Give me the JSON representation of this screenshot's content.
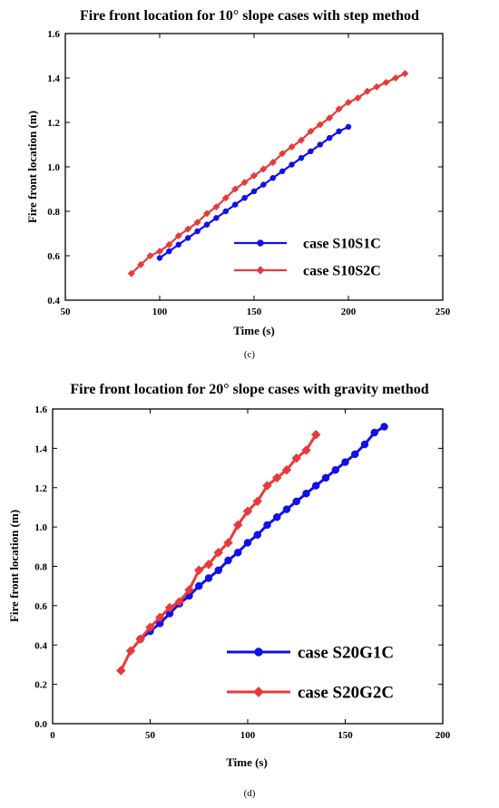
{
  "chart_data": [
    {
      "type": "line",
      "title": "Fire front location for 10° slope cases with step method",
      "xlabel": "Time (s)",
      "ylabel": "Fire front location (m)",
      "xlim": [
        50,
        250
      ],
      "ylim": [
        0.4,
        1.6
      ],
      "xticks": [
        "50",
        "100",
        "150",
        "200",
        "250"
      ],
      "yticks": [
        "0.4",
        "0.6",
        "0.8",
        "1.0",
        "1.2",
        "1.4",
        "1.6"
      ],
      "caption": "(c)",
      "grid": false,
      "legend_position": "lower-right",
      "series": [
        {
          "name": "case S10S1C",
          "color": "#1010e8",
          "marker": "circle",
          "x": [
            100,
            105,
            110,
            115,
            120,
            125,
            130,
            135,
            140,
            145,
            150,
            155,
            160,
            165,
            170,
            175,
            180,
            185,
            190,
            195,
            200
          ],
          "y": [
            0.59,
            0.62,
            0.65,
            0.68,
            0.71,
            0.74,
            0.77,
            0.8,
            0.83,
            0.86,
            0.89,
            0.92,
            0.95,
            0.98,
            1.01,
            1.04,
            1.07,
            1.1,
            1.13,
            1.16,
            1.18
          ]
        },
        {
          "name": "case S10S2C",
          "color": "#e83a3a",
          "marker": "diamond",
          "x": [
            85,
            90,
            95,
            100,
            105,
            110,
            115,
            120,
            125,
            130,
            135,
            140,
            145,
            150,
            155,
            160,
            165,
            170,
            175,
            180,
            185,
            190,
            195,
            200,
            205,
            210,
            215,
            220,
            225,
            230
          ],
          "y": [
            0.52,
            0.56,
            0.6,
            0.62,
            0.65,
            0.69,
            0.72,
            0.75,
            0.79,
            0.82,
            0.86,
            0.9,
            0.93,
            0.96,
            0.99,
            1.02,
            1.06,
            1.09,
            1.12,
            1.16,
            1.19,
            1.22,
            1.26,
            1.29,
            1.31,
            1.34,
            1.36,
            1.38,
            1.4,
            1.42
          ]
        }
      ]
    },
    {
      "type": "line",
      "title": "Fire front location for 20° slope cases with gravity method",
      "xlabel": "Time (s)",
      "ylabel": "Fire front location (m)",
      "xlim": [
        0,
        200
      ],
      "ylim": [
        0.0,
        1.6
      ],
      "xticks": [
        "0",
        "50",
        "100",
        "150",
        "200"
      ],
      "yticks": [
        "0.0",
        "0.2",
        "0.4",
        "0.6",
        "0.8",
        "1.0",
        "1.2",
        "1.4",
        "1.6"
      ],
      "caption": "(d)",
      "grid": false,
      "legend_position": "lower-right",
      "series": [
        {
          "name": "case S20G1C",
          "color": "#1010e8",
          "marker": "circle",
          "x": [
            45,
            50,
            55,
            60,
            65,
            70,
            75,
            80,
            85,
            90,
            95,
            100,
            105,
            110,
            115,
            120,
            125,
            130,
            135,
            140,
            145,
            150,
            155,
            160,
            165,
            170
          ],
          "y": [
            0.43,
            0.47,
            0.51,
            0.56,
            0.61,
            0.65,
            0.7,
            0.74,
            0.78,
            0.83,
            0.87,
            0.92,
            0.96,
            1.01,
            1.05,
            1.09,
            1.13,
            1.17,
            1.21,
            1.25,
            1.29,
            1.33,
            1.37,
            1.42,
            1.48,
            1.51
          ]
        },
        {
          "name": "case S20G2C",
          "color": "#e83a3a",
          "marker": "diamond",
          "x": [
            35,
            40,
            45,
            50,
            55,
            60,
            65,
            70,
            75,
            80,
            85,
            90,
            95,
            100,
            105,
            110,
            115,
            120,
            125,
            130,
            135
          ],
          "y": [
            0.27,
            0.37,
            0.43,
            0.49,
            0.54,
            0.59,
            0.62,
            0.68,
            0.78,
            0.81,
            0.87,
            0.92,
            1.01,
            1.08,
            1.13,
            1.21,
            1.25,
            1.29,
            1.35,
            1.39,
            1.47
          ]
        }
      ]
    }
  ]
}
